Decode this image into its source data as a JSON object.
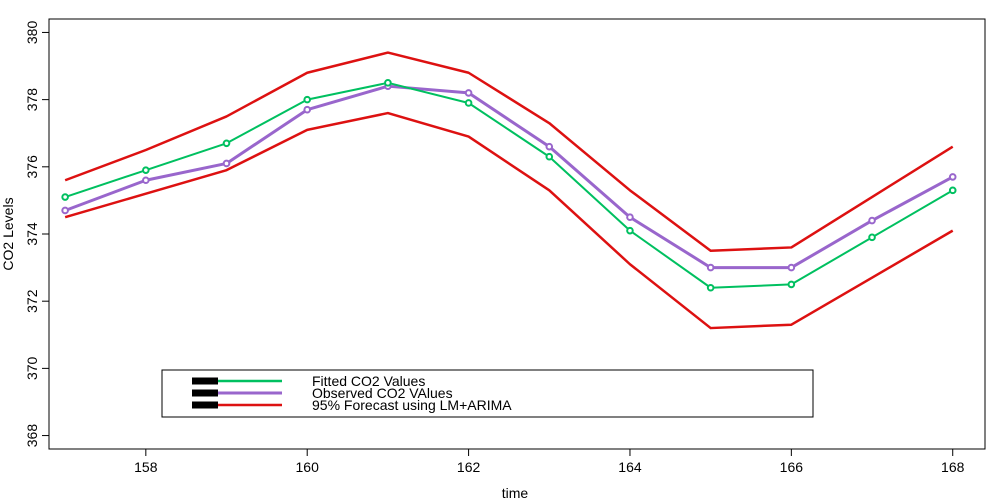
{
  "chart_data": {
    "type": "line",
    "xlabel": "time",
    "ylabel": "CO2 Levels",
    "xlim": [
      156.8,
      168.4
    ],
    "ylim": [
      367.6,
      380.4
    ],
    "xticks": [
      158,
      160,
      162,
      164,
      166,
      168
    ],
    "yticks": [
      368,
      370,
      372,
      374,
      376,
      378,
      380
    ],
    "x": [
      157,
      158,
      159,
      160,
      161,
      162,
      163,
      164,
      165,
      166,
      167,
      168
    ],
    "series": [
      {
        "name": "Fitted CO2 Values",
        "color": "#00c060",
        "markers": true,
        "values": [
          375.1,
          375.9,
          376.7,
          378.0,
          378.5,
          377.9,
          376.3,
          374.1,
          372.4,
          372.5,
          373.9,
          375.3
        ]
      },
      {
        "name": "Observed CO2 VAlues",
        "color": "#9966cc",
        "markers": true,
        "values": [
          374.7,
          375.6,
          376.1,
          377.7,
          378.4,
          378.2,
          376.6,
          374.5,
          373.0,
          373.0,
          374.4,
          375.7
        ]
      },
      {
        "name": "95% Forecast using LM+ARIMA",
        "color": "#dd1111",
        "markers": false,
        "upper": [
          375.6,
          376.5,
          377.5,
          378.8,
          379.4,
          378.8,
          377.3,
          375.3,
          373.5,
          373.6,
          375.1,
          376.6
        ],
        "lower": [
          374.5,
          375.2,
          375.9,
          377.1,
          377.6,
          376.9,
          375.3,
          373.1,
          371.2,
          371.3,
          372.7,
          374.1
        ]
      }
    ],
    "legend": {
      "placement": "bottom-center",
      "entries": [
        "Fitted CO2 Values",
        "Observed CO2 VAlues",
        "95% Forecast using LM+ARIMA"
      ]
    },
    "grid": false
  }
}
